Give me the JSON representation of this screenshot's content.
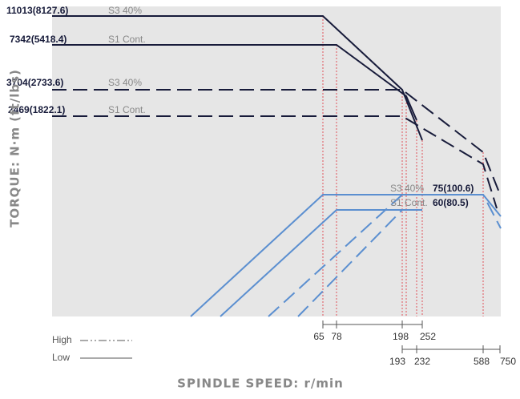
{
  "y_axis_title": "TORQUE: N·m (ft/lbs)",
  "x_axis_title": "SPINDLE SPEED: r/min",
  "torque_labels": [
    {
      "value": "11013(8127.6)",
      "mode": "S3 40%"
    },
    {
      "value": "7342(5418.4)",
      "mode": "S1 Cont."
    },
    {
      "value": "3704(2733.6)",
      "mode": "S3 40%"
    },
    {
      "value": "2469(1822.1)",
      "mode": "S1 Cont."
    }
  ],
  "power_labels": [
    {
      "mode": "S3 40%",
      "value": "75(100.6)"
    },
    {
      "mode": "S1 Cont.",
      "value": "60(80.5)"
    }
  ],
  "speed_ticks_upper": [
    "65",
    "78",
    "198",
    "252"
  ],
  "speed_ticks_lower": [
    "193",
    "232",
    "588",
    "750"
  ],
  "legend": [
    "High",
    "Low"
  ]
}
